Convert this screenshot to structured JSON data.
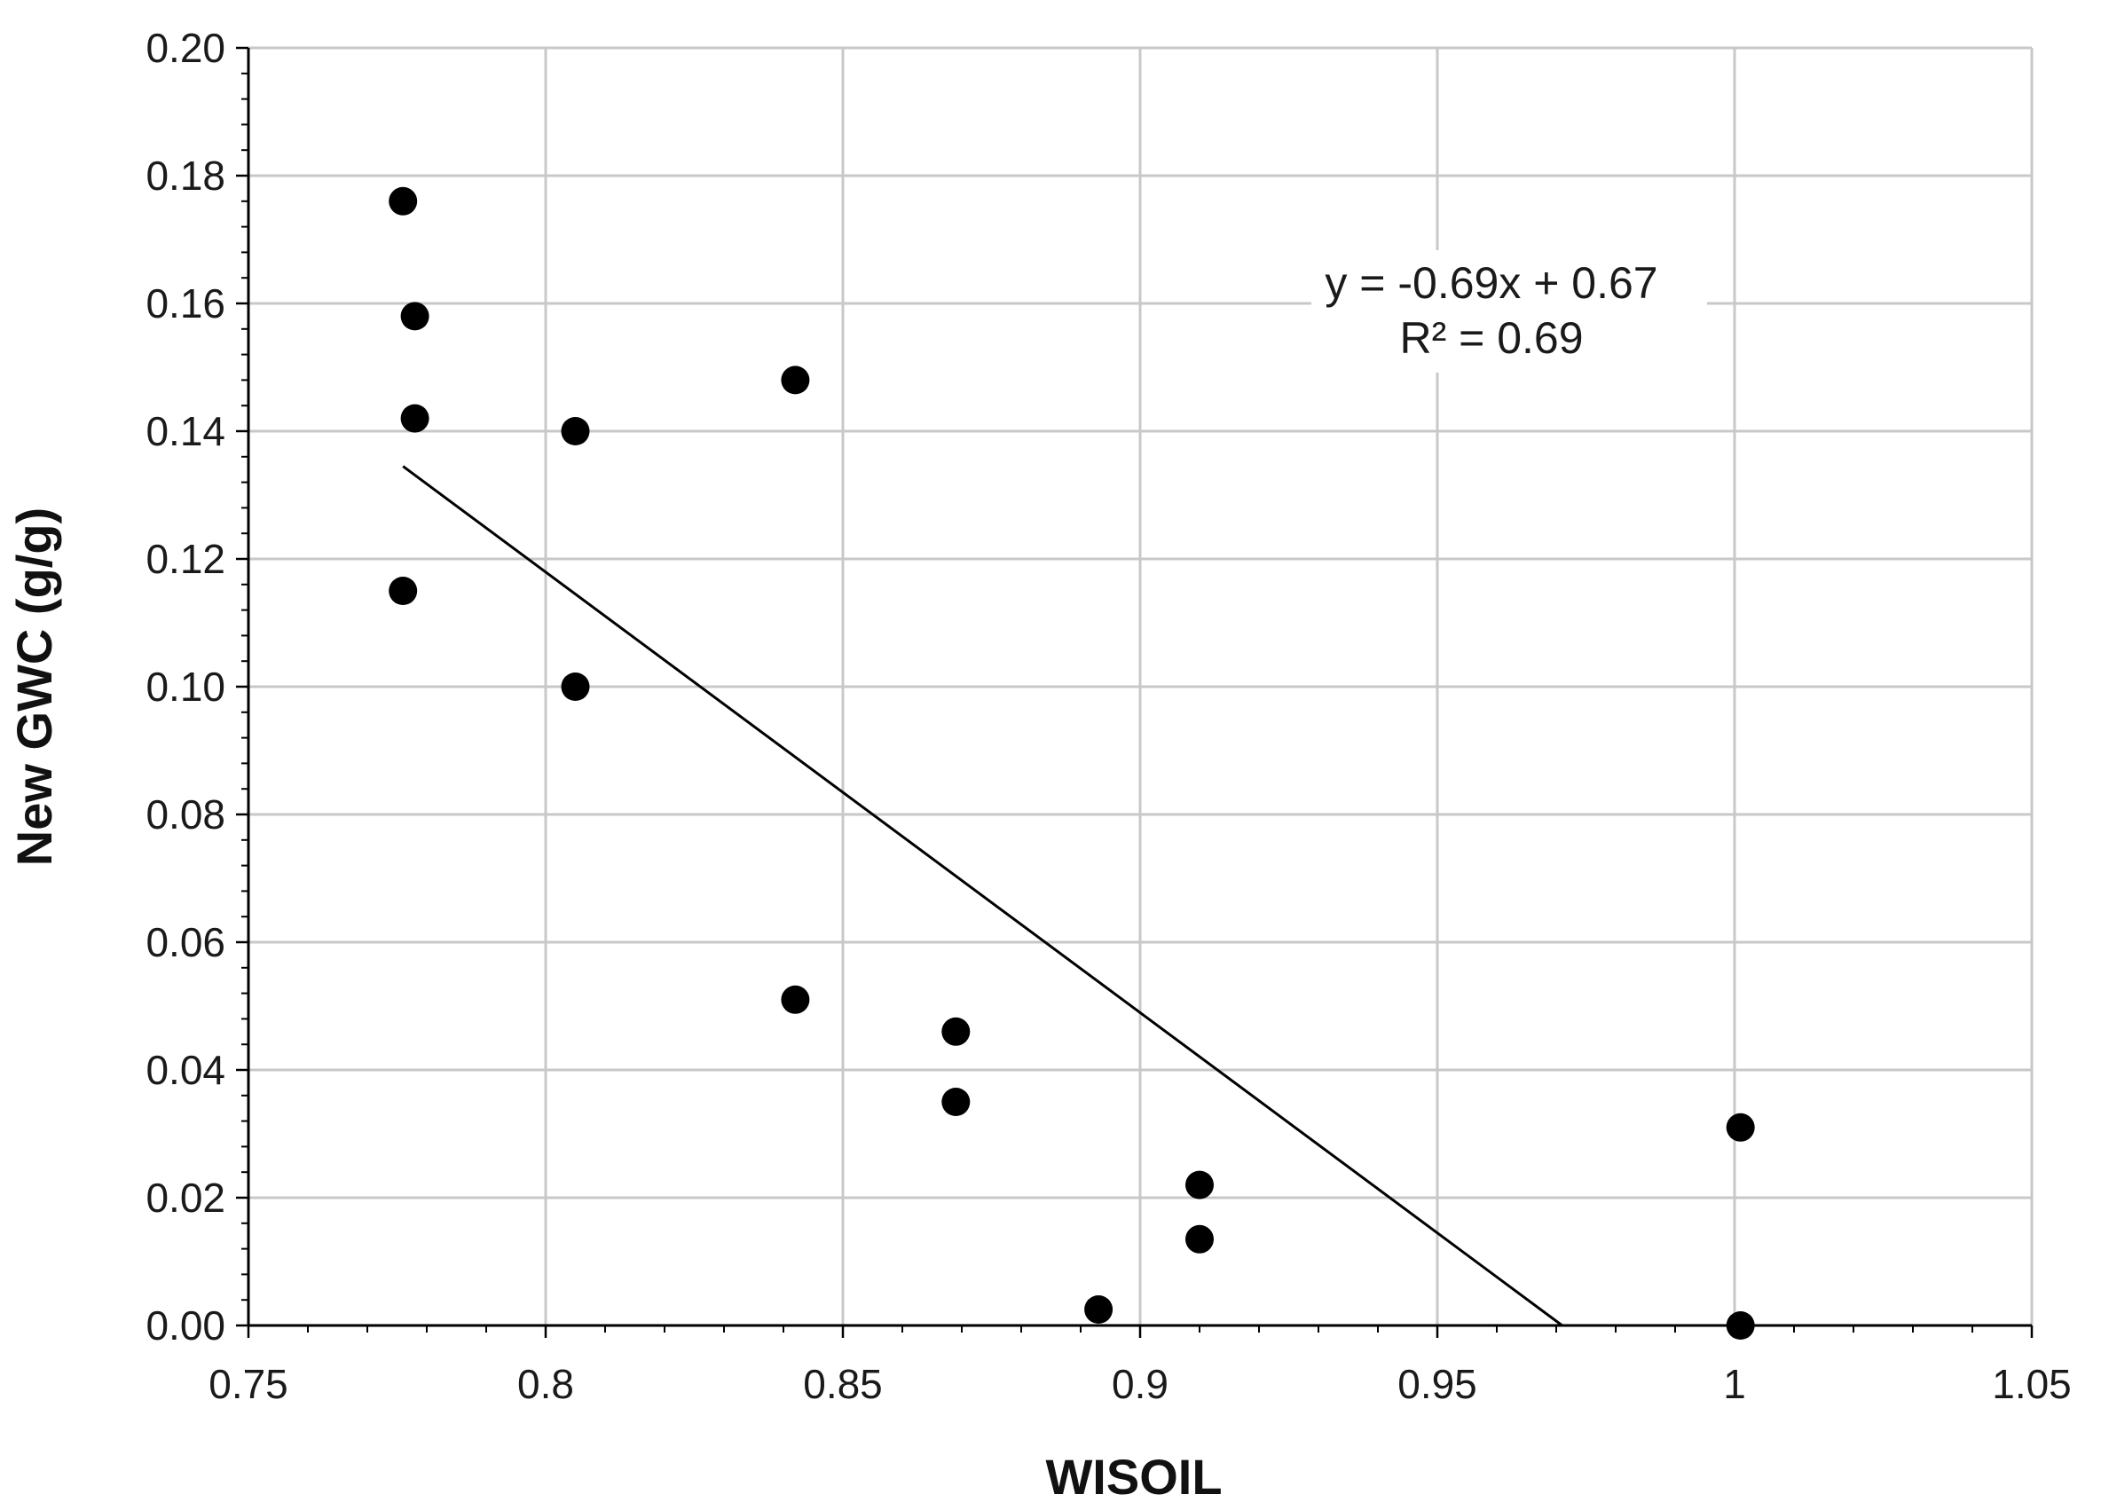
{
  "chart_data": {
    "type": "scatter",
    "title": "",
    "xlabel": "WISOIL",
    "ylabel": "New GWC (g/g)",
    "xlim": [
      0.75,
      1.05
    ],
    "ylim": [
      0.0,
      0.2
    ],
    "x_ticks": [
      0.75,
      0.8,
      0.85,
      0.9,
      0.95,
      1.0,
      1.05
    ],
    "x_tick_labels": [
      "0.75",
      "0.8",
      "0.85",
      "0.9",
      "0.95",
      "1",
      "1.05"
    ],
    "y_ticks": [
      0.0,
      0.02,
      0.04,
      0.06,
      0.08,
      0.1,
      0.12,
      0.14,
      0.16,
      0.18,
      0.2
    ],
    "y_tick_labels": [
      "0.00",
      "0.02",
      "0.04",
      "0.06",
      "0.08",
      "0.10",
      "0.12",
      "0.14",
      "0.16",
      "0.18",
      "0.20"
    ],
    "grid": true,
    "series": [
      {
        "name": "data",
        "marker": "circle",
        "color": "#000000",
        "points": [
          {
            "x": 0.776,
            "y": 0.176
          },
          {
            "x": 0.778,
            "y": 0.158
          },
          {
            "x": 0.778,
            "y": 0.142
          },
          {
            "x": 0.776,
            "y": 0.115
          },
          {
            "x": 0.805,
            "y": 0.14
          },
          {
            "x": 0.805,
            "y": 0.1
          },
          {
            "x": 0.842,
            "y": 0.148
          },
          {
            "x": 0.842,
            "y": 0.051
          },
          {
            "x": 0.869,
            "y": 0.046
          },
          {
            "x": 0.869,
            "y": 0.035
          },
          {
            "x": 0.893,
            "y": 0.0025
          },
          {
            "x": 0.91,
            "y": 0.022
          },
          {
            "x": 0.91,
            "y": 0.0135
          },
          {
            "x": 1.001,
            "y": 0.031
          },
          {
            "x": 1.001,
            "y": 0.0
          }
        ]
      }
    ],
    "trendline": {
      "type": "linear",
      "x_start": 0.776,
      "y_start": 0.1345,
      "x_end": 0.971,
      "y_end": 0.0,
      "color": "#000000"
    },
    "annotations": {
      "equation": "y = -0.69x + 0.67",
      "r_squared": "R² = 0.69"
    }
  }
}
